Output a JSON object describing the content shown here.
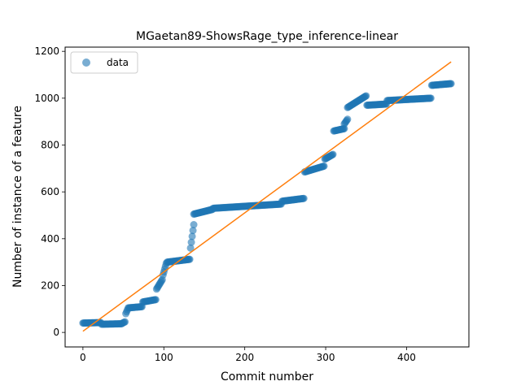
{
  "chart_data": {
    "type": "scatter",
    "title": "MGaetan89-ShowsRage_type_inference-linear",
    "xlabel": "Commit number",
    "ylabel": "Number of instance of a feature",
    "xlim": [
      -22,
      477
    ],
    "ylim": [
      -62,
      1218
    ],
    "xticks": [
      0,
      100,
      200,
      300,
      400
    ],
    "yticks": [
      0,
      200,
      400,
      600,
      800,
      1000,
      1200
    ],
    "grid": false,
    "legend": {
      "placement": "top-left",
      "entries": [
        {
          "label": "data",
          "marker": "circle",
          "color": "#1f77b4"
        }
      ]
    },
    "series": [
      {
        "name": "data",
        "kind": "scatter",
        "color": "#1f77b4",
        "opacity": 0.6,
        "segments": [
          {
            "x": [
              0,
              22
            ],
            "y": [
              40,
              42
            ]
          },
          {
            "x": [
              23,
              48
            ],
            "y": [
              35,
              37
            ]
          },
          {
            "x": [
              49,
              52
            ],
            "y": [
              40,
              45
            ]
          },
          {
            "x": [
              53,
              56
            ],
            "y": [
              80,
              105
            ]
          },
          {
            "x": [
              57,
              73
            ],
            "y": [
              105,
              110
            ]
          },
          {
            "x": [
              74,
              90
            ],
            "y": [
              130,
              140
            ]
          },
          {
            "x": [
              91,
              98
            ],
            "y": [
              185,
              225
            ]
          },
          {
            "x": [
              99,
              103
            ],
            "y": [
              245,
              295
            ]
          },
          {
            "x": [
              104,
              132
            ],
            "y": [
              300,
              312
            ]
          },
          {
            "x": [
              133,
              137
            ],
            "y": [
              360,
              460
            ]
          },
          {
            "x": [
              137,
              160
            ],
            "y": [
              505,
              525
            ]
          },
          {
            "x": [
              161,
              245
            ],
            "y": [
              530,
              548
            ]
          },
          {
            "x": [
              246,
              273
            ],
            "y": [
              560,
              572
            ]
          },
          {
            "x": [
              274,
              298
            ],
            "y": [
              685,
              710
            ]
          },
          {
            "x": [
              299,
              309
            ],
            "y": [
              740,
              760
            ]
          },
          {
            "x": [
              310,
              323
            ],
            "y": [
              860,
              870
            ]
          },
          {
            "x": [
              323,
              327
            ],
            "y": [
              890,
              910
            ]
          },
          {
            "x": [
              327,
              350
            ],
            "y": [
              960,
              1010
            ]
          },
          {
            "x": [
              351,
              375
            ],
            "y": [
              970,
              975
            ]
          },
          {
            "x": [
              376,
              430
            ],
            "y": [
              990,
              1000
            ]
          },
          {
            "x": [
              431,
              455
            ],
            "y": [
              1055,
              1062
            ]
          }
        ]
      },
      {
        "name": "fit",
        "kind": "line",
        "color": "#ff7f0e",
        "x": [
          0,
          455
        ],
        "y": [
          5,
          1155
        ]
      }
    ]
  }
}
